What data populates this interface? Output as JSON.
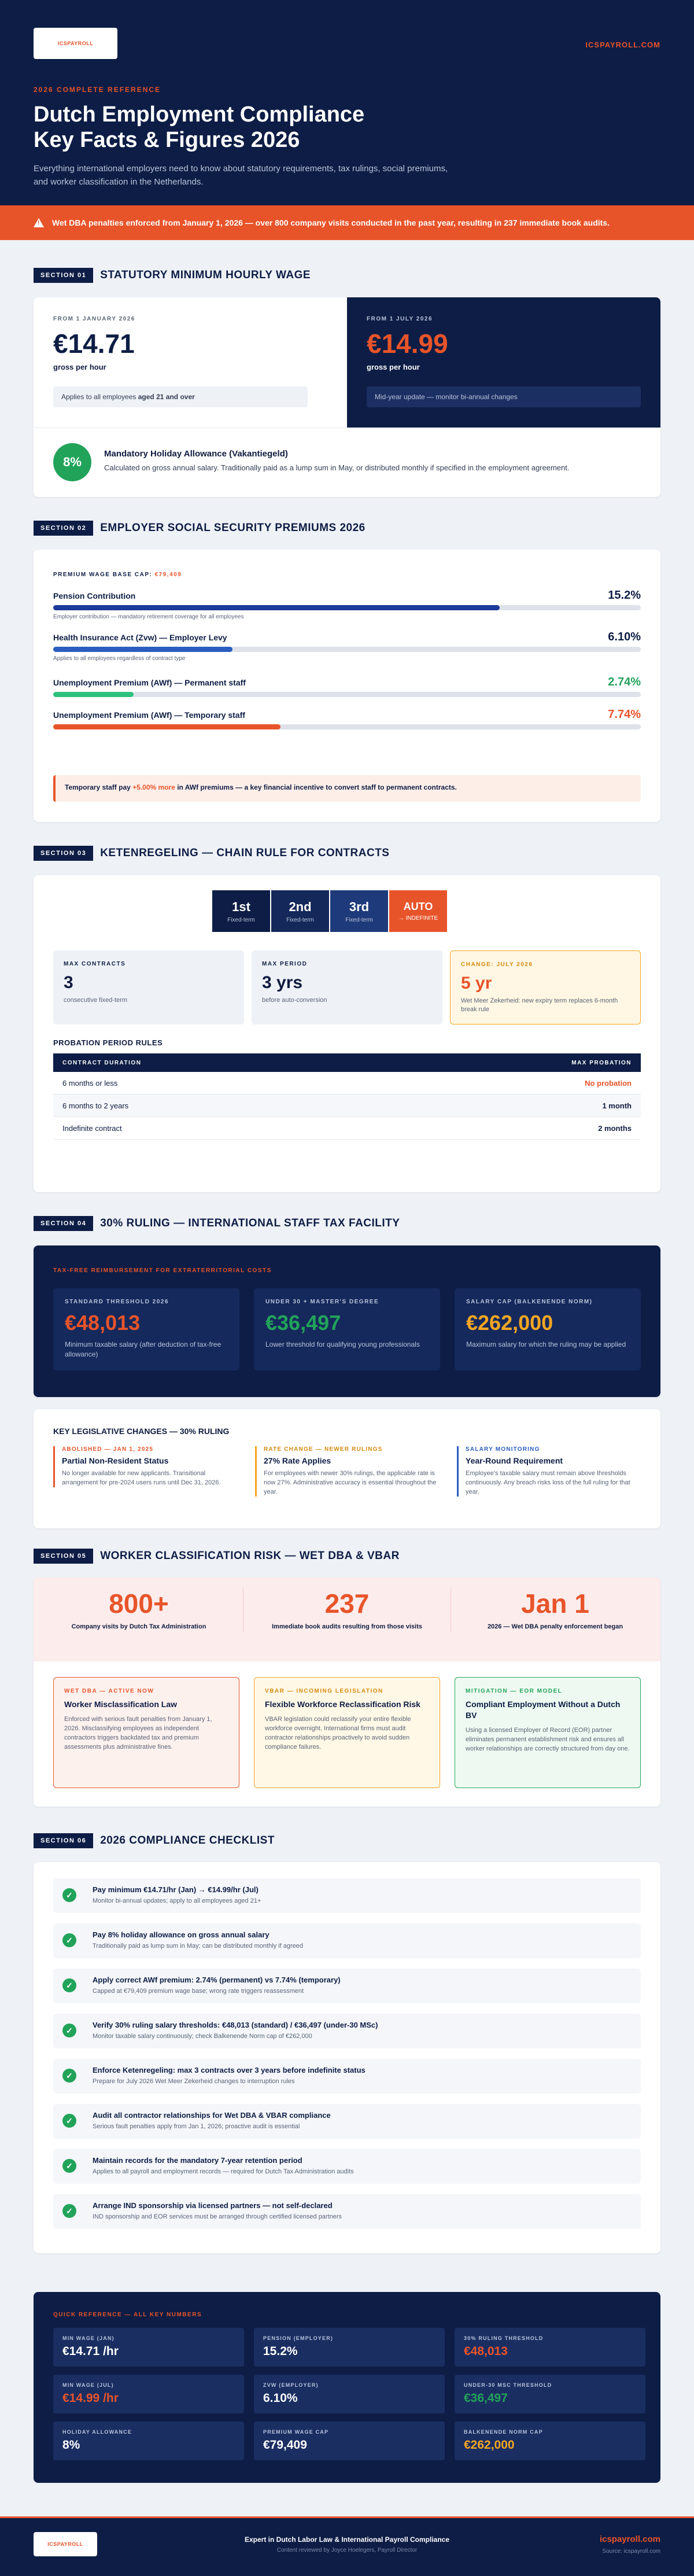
{
  "header": {
    "logo": "ICSPAYROLL",
    "site": "ICSPAYROLL.COM",
    "kicker": "2026 COMPLETE REFERENCE",
    "title_line1": "Dutch Employment Compliance",
    "title_line2": "Key Facts & Figures 2026",
    "intro": "Everything international employers need to know about statutory requirements, tax rulings, social premiums, and worker classification in the Netherlands."
  },
  "alert": "Wet DBA penalties enforced from January 1, 2026 — over 800 company visits conducted in the past year, resulting in 237 immediate book audits.",
  "s1": {
    "tag": "SECTION 01",
    "title": "STATUTORY MINIMUM HOURLY WAGE",
    "left_label": "FROM 1 JANUARY 2026",
    "left_value": "€14.71",
    "left_unit": "gross per hour",
    "left_note_a": "Applies to all employees ",
    "left_note_b": "aged 21 and over",
    "right_label": "FROM 1 JULY 2026",
    "right_value": "€14.99",
    "right_unit": "gross per hour",
    "right_note": "Mid-year update — monitor bi-annual changes",
    "badge": "8%",
    "hol_title": "Mandatory Holiday Allowance (Vakantiegeld)",
    "hol_desc": "Calculated on gross annual salary. Traditionally paid as a lump sum in May, or distributed monthly if specified in the employment agreement."
  },
  "s2": {
    "tag": "SECTION 02",
    "title": "EMPLOYER SOCIAL SECURITY PREMIUMS 2026",
    "cap_label": "PREMIUM WAGE BASE CAP:",
    "cap_value": "€79,409",
    "rows": [
      {
        "name": "Pension Contribution",
        "pct": "15.2%",
        "fill": 0.76,
        "note": "Employer contribution — mandatory retirement coverage for all employees"
      },
      {
        "name": "Health Insurance Act (Zvw) — Employer Levy",
        "pct": "6.10%",
        "fill": 0.305,
        "note": "Applies to all employees regardless of contract type"
      },
      {
        "name": "Unemployment Premium (AWf) — Permanent staff",
        "pct": "2.74%",
        "fill": 0.137,
        "note": ""
      },
      {
        "name": "Unemployment Premium (AWf) — Temporary staff",
        "pct": "7.74%",
        "fill": 0.387,
        "note": ""
      }
    ],
    "callout_a": "Temporary staff pay ",
    "callout_b": "+5.00% more",
    "callout_c": " in AWf premiums — a key financial incentive to convert staff to permanent contracts."
  },
  "s3": {
    "tag": "SECTION 03",
    "title": "KETENREGELING — CHAIN RULE FOR CONTRACTS",
    "chain": [
      {
        "n": "1st",
        "s": "Fixed-term"
      },
      {
        "n": "2nd",
        "s": "Fixed-term"
      },
      {
        "n": "3rd",
        "s": "Fixed-term"
      },
      {
        "n": "AUTO",
        "s": "→ INDEFINITE"
      }
    ],
    "stats": [
      {
        "l": "MAX CONTRACTS",
        "v": "3",
        "d": "consecutive fixed-term"
      },
      {
        "l": "MAX PERIOD",
        "v": "3 yrs",
        "d": "before auto-conversion"
      },
      {
        "l": "CHANGE: JULY 2026",
        "v": "5 yr",
        "d": "Wet Meer Zekerheid: new expiry term replaces 6-month break rule"
      }
    ],
    "prob_title": "PROBATION PERIOD RULES",
    "col1": "CONTRACT DURATION",
    "col2": "MAX PROBATION",
    "prob": [
      {
        "a": "6 months or less",
        "b": "No probation"
      },
      {
        "a": "6 months to 2 years",
        "b": "1 month"
      },
      {
        "a": "Indefinite contract",
        "b": "2 months"
      }
    ]
  },
  "s4": {
    "tag": "SECTION 04",
    "title": "30% RULING — INTERNATIONAL STAFF TAX FACILITY",
    "kicker": "TAX-FREE REIMBURSEMENT FOR EXTRATERRITORIAL COSTS",
    "cards": [
      {
        "l": "STANDARD THRESHOLD 2026",
        "v": "€48,013",
        "d": "Minimum taxable salary (after deduction of tax-free allowance)"
      },
      {
        "l": "UNDER 30 + MASTER'S DEGREE",
        "v": "€36,497",
        "d": "Lower threshold for qualifying young professionals"
      },
      {
        "l": "SALARY CAP (BALKENENDE NORM)",
        "v": "€262,000",
        "d": "Maximum salary for which the ruling may be applied"
      }
    ],
    "chg_title": "KEY LEGISLATIVE CHANGES — 30% RULING",
    "changes": [
      {
        "t": "ABOLISHED — JAN 1, 2025",
        "n": "Partial Non-Resident Status",
        "d": "No longer available for new applicants. Transitional arrangement for pre-2024 users runs until Dec 31, 2026."
      },
      {
        "t": "RATE CHANGE — NEWER RULINGS",
        "n": "27% Rate Applies",
        "d": "For employees with newer 30% rulings, the applicable rate is now 27%. Administrative accuracy is essential throughout the year."
      },
      {
        "t": "SALARY MONITORING",
        "n": "Year-Round Requirement",
        "d": "Employee's taxable salary must remain above thresholds continuously. Any breach risks loss of the full ruling for that year."
      }
    ]
  },
  "s5": {
    "tag": "SECTION 05",
    "title": "WORKER CLASSIFICATION RISK — WET DBA & VBAR",
    "kpis": [
      {
        "v": "800+",
        "d": "Company visits by Dutch Tax Administration"
      },
      {
        "v": "237",
        "d": "Immediate book audits resulting from those visits"
      },
      {
        "v": "Jan 1",
        "d": "2026 — Wet DBA penalty enforcement began"
      }
    ],
    "cards": [
      {
        "t": "WET DBA — ACTIVE NOW",
        "n": "Worker Misclassification Law",
        "d": "Enforced with serious fault penalties from January 1, 2026. Misclassifying employees as independent contractors triggers backdated tax and premium assessments plus administrative fines."
      },
      {
        "t": "VBAR — INCOMING LEGISLATION",
        "n": "Flexible Workforce Reclassification Risk",
        "d": "VBAR legislation could reclassify your entire flexible workforce overnight. International firms must audit contractor relationships proactively to avoid sudden compliance failures."
      },
      {
        "t": "MITIGATION — EOR MODEL",
        "n": "Compliant Employment Without a Dutch BV",
        "d": "Using a licensed Employer of Record (EOR) partner eliminates permanent establishment risk and ensures all worker relationships are correctly structured from day one."
      }
    ]
  },
  "s6": {
    "tag": "SECTION 06",
    "title": "2026 COMPLIANCE CHECKLIST",
    "items": [
      {
        "n": "Pay minimum €14.71/hr (Jan) → €14.99/hr (Jul)",
        "d": "Monitor bi-annual updates; apply to all employees aged 21+"
      },
      {
        "n": "Pay 8% holiday allowance on gross annual salary",
        "d": "Traditionally paid as lump sum in May; can be distributed monthly if agreed"
      },
      {
        "n": "Apply correct AWf premium: 2.74% (permanent) vs 7.74% (temporary)",
        "d": "Capped at €79,409 premium wage base; wrong rate triggers reassessment"
      },
      {
        "n": "Verify 30% ruling salary thresholds: €48,013 (standard) / €36,497 (under-30 MSc)",
        "d": "Monitor taxable salary continuously; check Balkenende Norm cap of €262,000"
      },
      {
        "n": "Enforce Ketenregeling: max 3 contracts over 3 years before indefinite status",
        "d": "Prepare for July 2026 Wet Meer Zekerheid changes to interruption rules"
      },
      {
        "n": "Audit all contractor relationships for Wet DBA & VBAR compliance",
        "d": "Serious fault penalties apply from Jan 1, 2026; proactive audit is essential"
      },
      {
        "n": "Maintain records for the mandatory 7-year retention period",
        "d": "Applies to all payroll and employment records — required for Dutch Tax Administration audits"
      },
      {
        "n": "Arrange IND sponsorship via licensed partners — not self-declared",
        "d": "IND sponsorship and EOR services must be arranged through certified licensed partners"
      }
    ]
  },
  "ref": {
    "title": "QUICK REFERENCE — ALL KEY NUMBERS",
    "items": [
      {
        "k": "MIN WAGE (JAN)",
        "v": "€14.71 /hr",
        "c": "#ffffff"
      },
      {
        "k": "PENSION (EMPLOYER)",
        "v": "15.2%",
        "c": "#ffffff"
      },
      {
        "k": "30% RULING THRESHOLD",
        "v": "€48,013",
        "c": "#e8542a"
      },
      {
        "k": "MIN WAGE (JUL)",
        "v": "€14.99 /hr",
        "c": "#e8542a"
      },
      {
        "k": "ZVW (EMPLOYER)",
        "v": "6.10%",
        "c": "#ffffff"
      },
      {
        "k": "UNDER-30 MSC THRESHOLD",
        "v": "€36,497",
        "c": "#22a35a"
      },
      {
        "k": "HOLIDAY ALLOWANCE",
        "v": "8%",
        "c": "#ffffff"
      },
      {
        "k": "PREMIUM WAGE CAP",
        "v": "€79,409",
        "c": "#ffffff"
      },
      {
        "k": "BALKENENDE NORM CAP",
        "v": "€262,000",
        "c": "#f5a623"
      }
    ]
  },
  "footer": {
    "line1": "Expert in Dutch Labor Law & International Payroll Compliance",
    "line2": "Content reviewed by Joyce Hoelegers, Payroll Director",
    "site": "icspayroll.com",
    "source": "Source: icspayroll.com"
  }
}
